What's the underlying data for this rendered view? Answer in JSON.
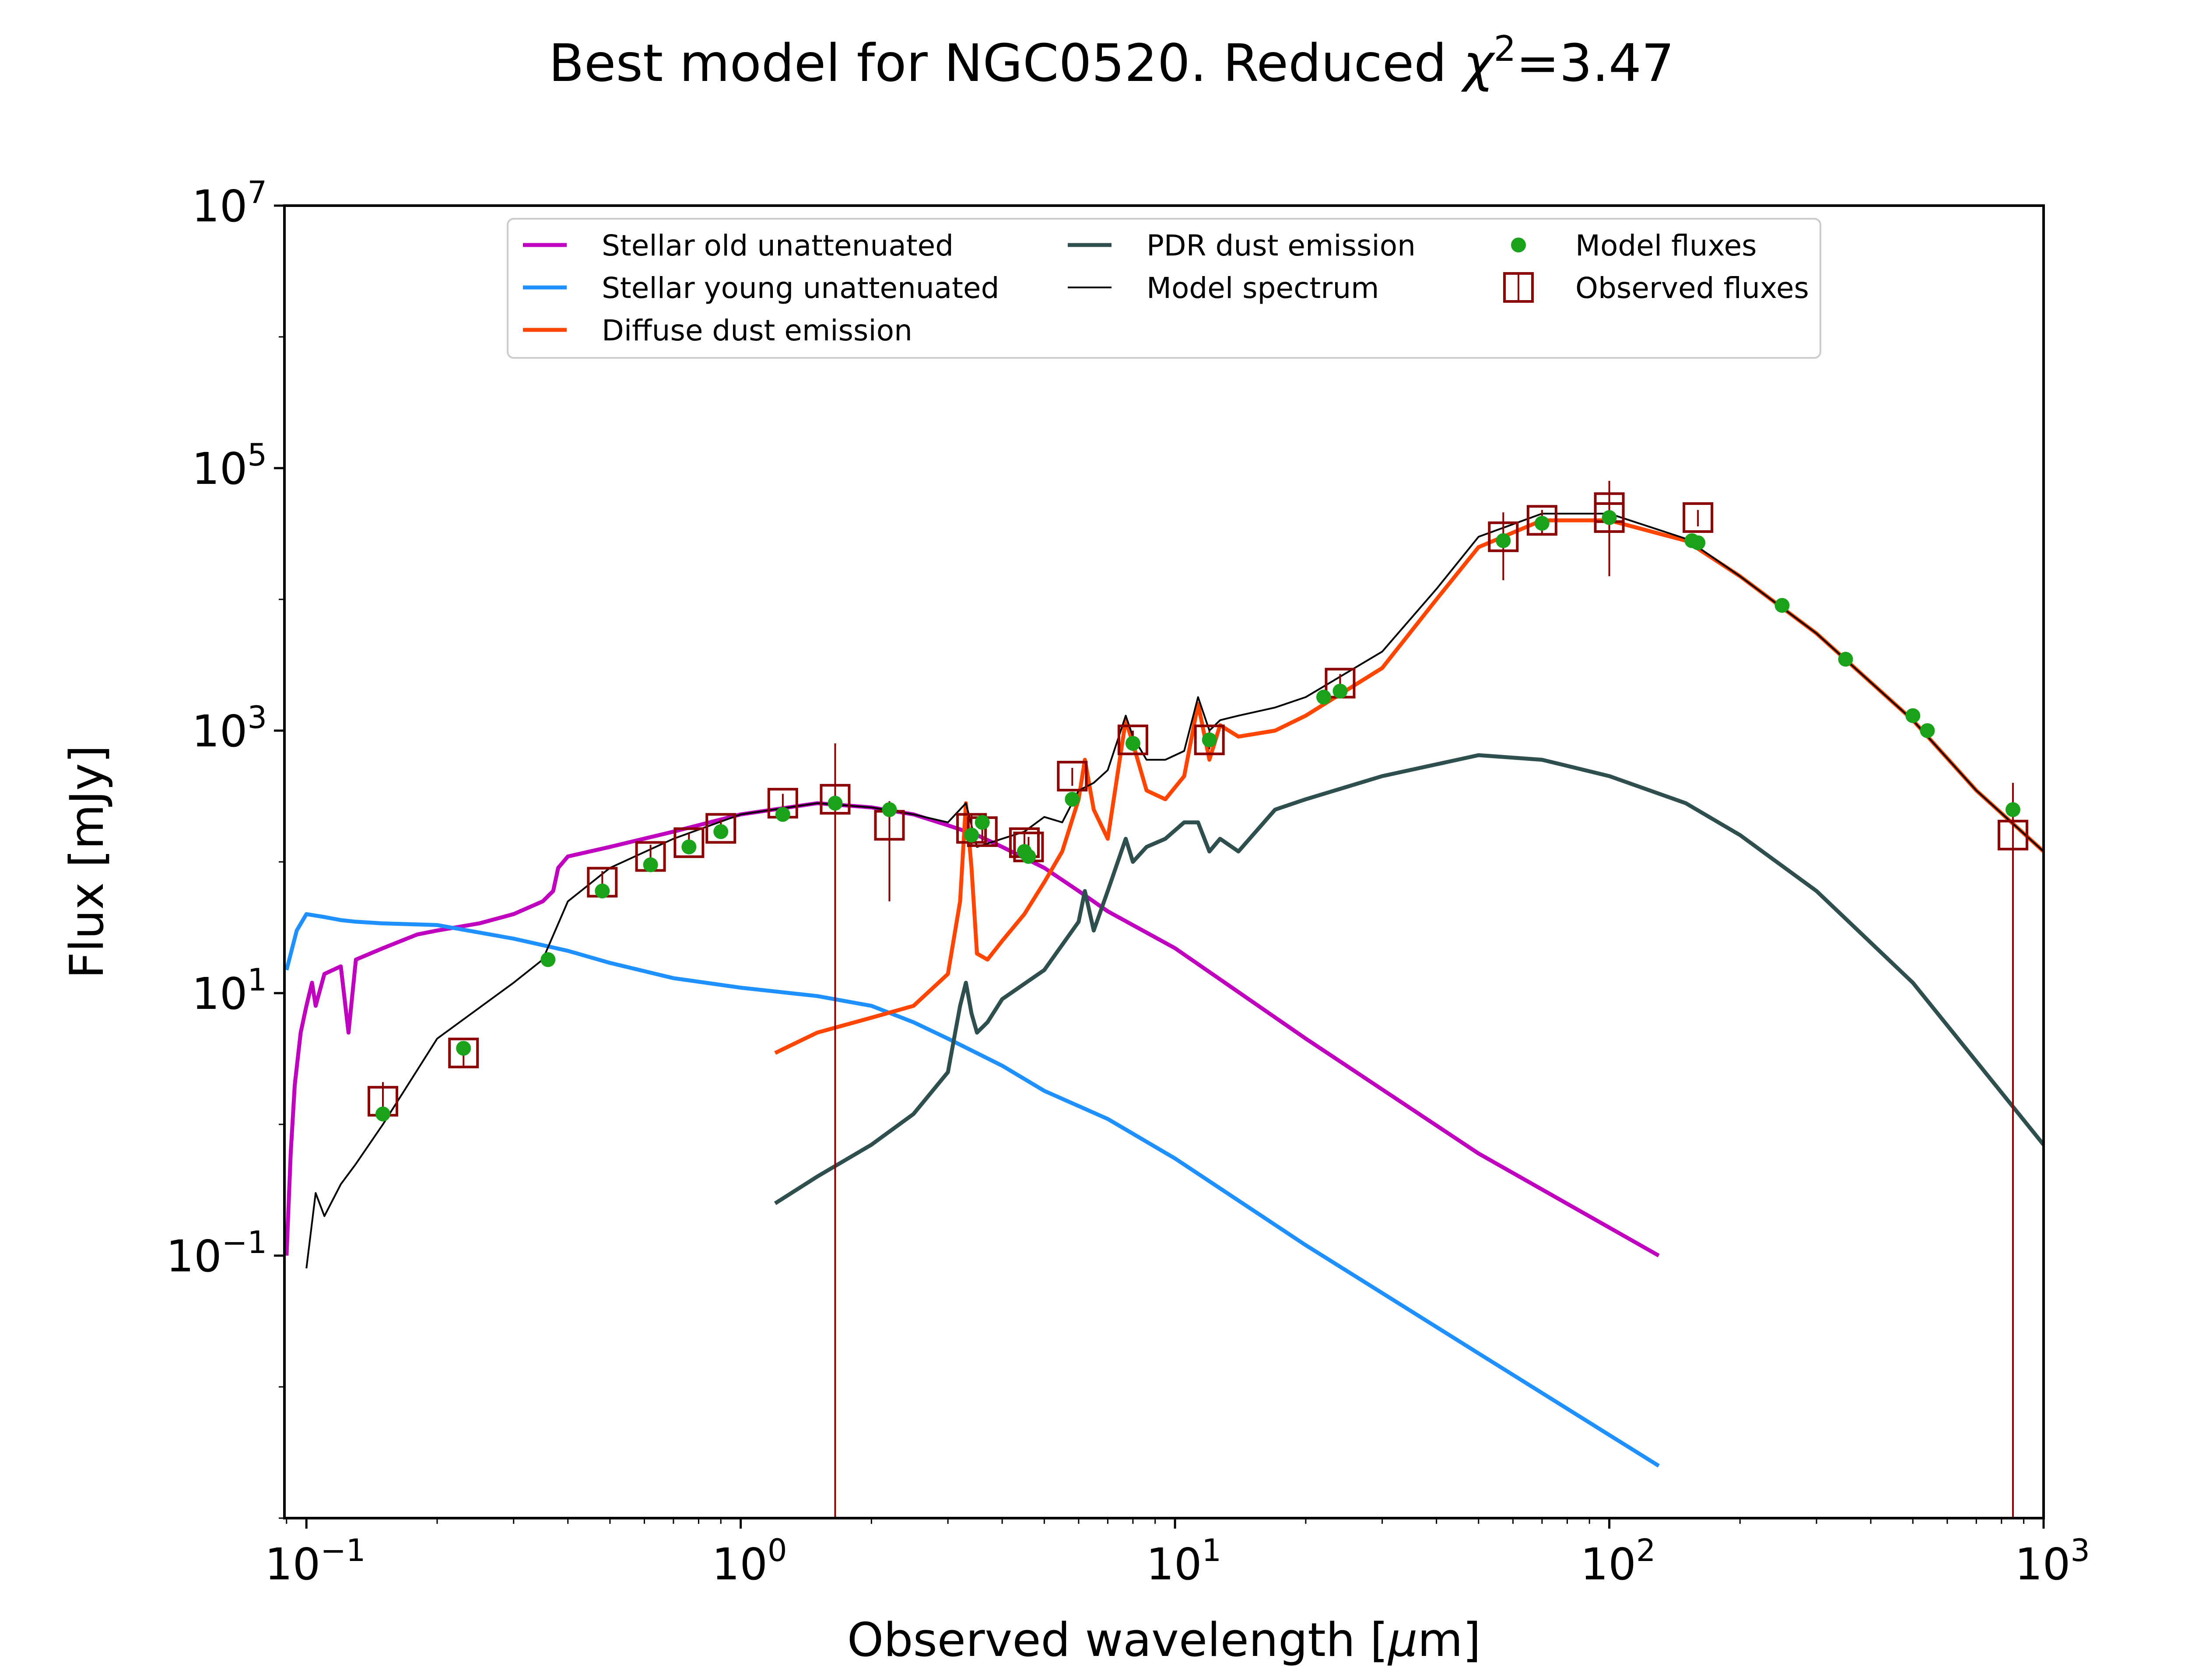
{
  "chart_data": {
    "type": "line",
    "title_prefix": "Best model for NGC0520. Reduced ",
    "title_chi": "χ",
    "title_exp": "2",
    "title_suffix": "=3.47",
    "xlabel_prefix": "Observed wavelength [",
    "xlabel_mu": "μ",
    "xlabel_suffix": "m]",
    "ylabel": "Flux [mJy]",
    "xscale": "log",
    "yscale": "log",
    "xlim": [
      0.089,
      1000
    ],
    "ylim": [
      0.001,
      10000000
    ],
    "xticks": [
      {
        "base": "10",
        "exp": "−1",
        "value": 0.1
      },
      {
        "base": "10",
        "exp": "0",
        "value": 1
      },
      {
        "base": "10",
        "exp": "1",
        "value": 10
      },
      {
        "base": "10",
        "exp": "2",
        "value": 100
      },
      {
        "base": "10",
        "exp": "3",
        "value": 1000
      }
    ],
    "yticks": [
      {
        "base": "10",
        "exp": "−1",
        "value": 0.1
      },
      {
        "base": "10",
        "exp": "1",
        "value": 10
      },
      {
        "base": "10",
        "exp": "3",
        "value": 1000
      },
      {
        "base": "10",
        "exp": "5",
        "value": 100000
      },
      {
        "base": "10",
        "exp": "7",
        "value": 10000000
      }
    ],
    "legend_position": "top-center",
    "legend": [
      {
        "label": "Stellar old unattenuated",
        "kind": "line",
        "color": "#BF00BF"
      },
      {
        "label": "Stellar young unattenuated",
        "kind": "line",
        "color": "#1E90FF"
      },
      {
        "label": "Diffuse dust emission",
        "kind": "line",
        "color": "#FF4500"
      },
      {
        "label": "PDR dust emission",
        "kind": "line",
        "color": "#2F4F4F"
      },
      {
        "label": "Model spectrum",
        "kind": "thinline",
        "color": "#000000"
      },
      {
        "label": "Model fluxes",
        "kind": "dot",
        "color": "#1AA31A"
      },
      {
        "label": "Observed fluxes",
        "kind": "square",
        "color": "#8B0000"
      }
    ],
    "series": [
      {
        "name": "Stellar old unattenuated",
        "color": "#BF00BF",
        "x": [
          0.09,
          0.092,
          0.094,
          0.097,
          0.1,
          0.103,
          0.105,
          0.11,
          0.115,
          0.12,
          0.125,
          0.13,
          0.15,
          0.18,
          0.2,
          0.25,
          0.3,
          0.35,
          0.37,
          0.38,
          0.4,
          0.5,
          0.7,
          1.0,
          1.5,
          2.0,
          2.5,
          3.0,
          3.5,
          4.0,
          5.0,
          6.0,
          7.0,
          10,
          20,
          50,
          130
        ],
        "y": [
          0.1,
          0.6,
          2.0,
          5.0,
          8.0,
          12,
          8.0,
          14,
          15,
          16,
          5.0,
          18,
          22,
          28,
          30,
          34,
          40,
          50,
          60,
          90,
          110,
          130,
          170,
          230,
          280,
          260,
          230,
          190,
          160,
          130,
          90,
          60,
          42,
          22,
          4.5,
          0.6,
          0.1
        ]
      },
      {
        "name": "Stellar young unattenuated",
        "color": "#1E90FF",
        "x": [
          0.09,
          0.095,
          0.1,
          0.11,
          0.12,
          0.13,
          0.15,
          0.2,
          0.3,
          0.4,
          0.5,
          0.7,
          1.0,
          1.5,
          2.0,
          2.5,
          3.0,
          4.0,
          5.0,
          7.0,
          10,
          20,
          50,
          130
        ],
        "y": [
          15,
          30,
          40,
          38,
          36,
          35,
          34,
          33,
          26,
          21,
          17,
          13,
          11,
          9.5,
          8.0,
          6.0,
          4.5,
          2.8,
          1.8,
          1.1,
          0.55,
          0.12,
          0.018,
          0.0025
        ]
      },
      {
        "name": "Diffuse dust emission",
        "color": "#FF4500",
        "x": [
          1.2,
          1.5,
          2.0,
          2.5,
          3.0,
          3.2,
          3.3,
          3.4,
          3.5,
          3.7,
          4.0,
          4.5,
          5.0,
          5.5,
          6.0,
          6.2,
          6.5,
          7.0,
          7.7,
          8.0,
          8.6,
          9.5,
          10.5,
          11.3,
          12.0,
          12.7,
          14,
          17,
          20,
          30,
          40,
          50,
          70,
          100,
          150,
          200,
          300,
          500,
          700,
          1000
        ],
        "y": [
          3.5,
          5.0,
          6.5,
          8.0,
          14,
          50,
          280,
          90,
          20,
          18,
          25,
          40,
          70,
          120,
          300,
          600,
          250,
          150,
          1200,
          800,
          350,
          300,
          450,
          1600,
          600,
          1100,
          900,
          1000,
          1300,
          3000,
          10000,
          25000,
          40000,
          40000,
          28000,
          15000,
          5500,
          1200,
          350,
          120
        ]
      },
      {
        "name": "PDR dust emission",
        "color": "#2F4F4F",
        "x": [
          1.2,
          1.5,
          2.0,
          2.5,
          3.0,
          3.2,
          3.3,
          3.4,
          3.5,
          3.7,
          4.0,
          5.0,
          6.0,
          6.2,
          6.5,
          7.0,
          7.7,
          8.0,
          8.6,
          9.5,
          10.5,
          11.3,
          12.0,
          12.7,
          14,
          17,
          20,
          30,
          50,
          70,
          100,
          150,
          200,
          300,
          500,
          1000
        ],
        "y": [
          0.25,
          0.4,
          0.7,
          1.2,
          2.5,
          8.0,
          12,
          7.0,
          5.0,
          6.0,
          9.0,
          15,
          35,
          60,
          30,
          60,
          150,
          100,
          130,
          150,
          200,
          200,
          120,
          150,
          120,
          250,
          300,
          450,
          650,
          600,
          450,
          280,
          160,
          60,
          12,
          0.7
        ]
      },
      {
        "name": "Model spectrum",
        "color": "#000000",
        "x": [
          0.1,
          0.105,
          0.11,
          0.12,
          0.13,
          0.15,
          0.2,
          0.3,
          0.35,
          0.4,
          0.5,
          0.7,
          1.0,
          1.5,
          2.0,
          2.5,
          3.0,
          3.3,
          3.5,
          4.0,
          4.5,
          5.0,
          5.5,
          6.0,
          6.5,
          7.0,
          7.7,
          8.0,
          8.6,
          9.5,
          10.5,
          11.3,
          12.0,
          12.7,
          14,
          17,
          20,
          30,
          40,
          50,
          70,
          100,
          150,
          200,
          300,
          500,
          700,
          1000
        ],
        "y": [
          0.08,
          0.3,
          0.2,
          0.35,
          0.5,
          1.0,
          4.5,
          12,
          18,
          50,
          90,
          150,
          230,
          280,
          260,
          230,
          200,
          280,
          130,
          150,
          170,
          220,
          200,
          350,
          400,
          500,
          1300,
          900,
          600,
          600,
          700,
          1800,
          1000,
          1200,
          1300,
          1500,
          1800,
          4000,
          12000,
          30000,
          45000,
          45000,
          29000,
          15000,
          5500,
          1200,
          350,
          120
        ]
      }
    ],
    "model_fluxes": {
      "color": "#1AA31A",
      "x": [
        0.15,
        0.23,
        0.36,
        0.48,
        0.62,
        0.76,
        0.9,
        1.25,
        1.65,
        2.2,
        3.4,
        3.6,
        4.5,
        4.6,
        5.8,
        8.0,
        12,
        22,
        24,
        57,
        70,
        100,
        155,
        160,
        250,
        350,
        500,
        540,
        850
      ],
      "y": [
        1.2,
        3.8,
        18,
        60,
        95,
        130,
        170,
        230,
        280,
        250,
        160,
        200,
        120,
        110,
        300,
        800,
        850,
        1800,
        2000,
        28000,
        38000,
        42000,
        28000,
        27000,
        9000,
        3500,
        1300,
        1000,
        250
      ]
    },
    "observed_fluxes": {
      "color": "#8B0000",
      "x": [
        0.15,
        0.23,
        0.48,
        0.62,
        0.76,
        0.9,
        1.25,
        1.65,
        2.2,
        3.4,
        3.6,
        4.5,
        4.6,
        5.8,
        8.0,
        12,
        24,
        57,
        70,
        100,
        100,
        160,
        850
      ],
      "y": [
        1.5,
        3.5,
        70,
        110,
        140,
        180,
        280,
        300,
        190,
        180,
        170,
        140,
        130,
        450,
        850,
        850,
        2300,
        30000,
        40000,
        50000,
        42000,
        42000,
        160
      ],
      "yerr_low": [
        1.1,
        2.8,
        55,
        85,
        115,
        150,
        230,
        0.001,
        50,
        130,
        140,
        110,
        105,
        380,
        700,
        720,
        1900,
        14000,
        32000,
        20000,
        15000,
        36000,
        0.001
      ],
      "yerr_high": [
        2.1,
        4.3,
        85,
        135,
        165,
        210,
        330,
        800,
        290,
        230,
        200,
        170,
        155,
        520,
        1000,
        1000,
        2700,
        46000,
        48000,
        80000,
        65000,
        48000,
        400
      ]
    }
  }
}
